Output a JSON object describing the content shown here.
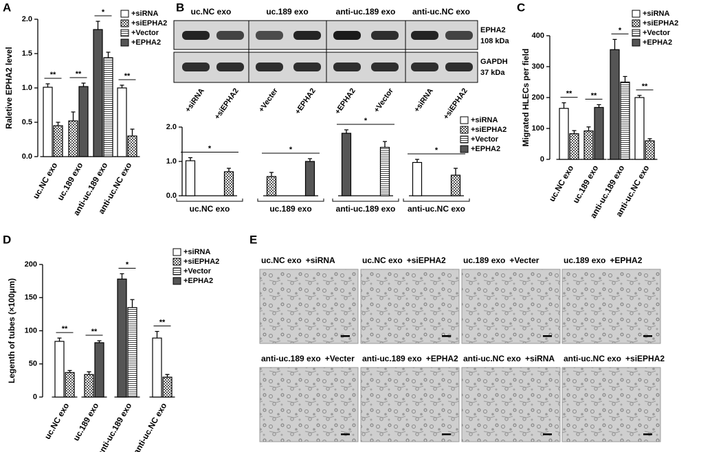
{
  "chart_data": [
    {
      "type": "bar",
      "panel": "A",
      "ylabel": "Raletive EPHA2  level",
      "categories": [
        "uc.NC exo",
        "uc.189 exo",
        "anti-uc.189 exo",
        "anti-uc.NC exo"
      ],
      "series": [
        {
          "name": "+siRNA",
          "color": "#ffffff",
          "pattern": "none",
          "values": [
            1.01,
            null,
            null,
            1.0
          ],
          "errors": [
            0.05,
            null,
            null,
            0.04
          ]
        },
        {
          "name": "+siEPHA2",
          "color": "#ffffff",
          "pattern": "checker",
          "values": [
            0.45,
            0.52,
            null,
            0.3
          ],
          "errors": [
            0.05,
            0.13,
            null,
            0.1
          ]
        },
        {
          "name": "+Vector",
          "color": "#ffffff",
          "pattern": "hstripe",
          "values": [
            null,
            null,
            1.44,
            null
          ],
          "errors": [
            null,
            null,
            0.08,
            null
          ]
        },
        {
          "name": "+EPHA2",
          "color": "#555555",
          "pattern": "none",
          "values": [
            null,
            1.02,
            1.85,
            null
          ],
          "errors": [
            null,
            0.05,
            0.12,
            null
          ]
        }
      ],
      "significance": [
        "**",
        "**",
        "*",
        "**"
      ],
      "ylim": [
        0,
        2.0
      ],
      "yticks": [
        {
          "value": 0,
          "label": "0.0"
        },
        0.5,
        {
          "value": 1,
          "label": "1.0"
        },
        1.5,
        {
          "value": 2,
          "label": "2.0"
        }
      ]
    },
    {
      "type": "bar",
      "panel": "B",
      "categories": [
        "uc.NC exo",
        "uc.189 exo",
        "anti-uc.189 exo",
        "anti-uc.NC exo"
      ],
      "series": [
        {
          "name": "+siRNA",
          "color": "#ffffff",
          "pattern": "none",
          "values": [
            1.02,
            null,
            null,
            0.97
          ],
          "errors": [
            0.09,
            null,
            null,
            0.09
          ]
        },
        {
          "name": "+siEPHA2",
          "color": "#ffffff",
          "pattern": "checker",
          "values": [
            0.7,
            0.56,
            null,
            0.6
          ],
          "errors": [
            0.1,
            0.12,
            null,
            0.2
          ]
        },
        {
          "name": "+Vector",
          "color": "#ffffff",
          "pattern": "hstripe",
          "values": [
            null,
            null,
            1.41,
            null
          ],
          "errors": [
            null,
            null,
            0.17,
            null
          ]
        },
        {
          "name": "+EPHA2",
          "color": "#555555",
          "pattern": "none",
          "values": [
            null,
            1.0,
            1.82,
            null
          ],
          "errors": [
            null,
            0.08,
            0.1,
            null
          ]
        }
      ],
      "significance": [
        "*",
        "*",
        "*",
        "*"
      ],
      "ylim": [
        0,
        2.0
      ],
      "yticks": [
        {
          "value": 0,
          "label": "0.0"
        },
        {
          "value": 1,
          "label": "1.0"
        },
        {
          "value": 2,
          "label": "2.0"
        }
      ]
    },
    {
      "type": "bar",
      "panel": "C",
      "ylabel": "Migrated HLECs per field",
      "categories": [
        "uc.NC exo",
        "uc.189 exo",
        "anti-uc.189 exo",
        "anti-uc.NC exo"
      ],
      "series": [
        {
          "name": "+siRNA",
          "color": "#ffffff",
          "pattern": "none",
          "values": [
            165,
            null,
            null,
            200
          ],
          "errors": [
            18,
            null,
            null,
            7
          ]
        },
        {
          "name": "+siEPHA2",
          "color": "#ffffff",
          "pattern": "checker",
          "values": [
            83,
            92,
            null,
            60
          ],
          "errors": [
            10,
            13,
            null,
            7
          ]
        },
        {
          "name": "+Vector",
          "color": "#ffffff",
          "pattern": "hstripe",
          "values": [
            null,
            null,
            250,
            null
          ],
          "errors": [
            null,
            null,
            18,
            null
          ]
        },
        {
          "name": "+EPHA2",
          "color": "#555555",
          "pattern": "none",
          "values": [
            null,
            168,
            355,
            null
          ],
          "errors": [
            null,
            9,
            33,
            null
          ]
        }
      ],
      "significance": [
        "**",
        "**",
        "*",
        "**"
      ],
      "ylim": [
        0,
        400
      ],
      "yticks": [
        0,
        100,
        200,
        300,
        400
      ]
    },
    {
      "type": "bar",
      "panel": "D",
      "ylabel": "Legenth of tubes (×100μm)",
      "categories": [
        "uc.NC exo",
        "uc.189 exo",
        "anti-uc.189 exo",
        "anti-uc.NC exo"
      ],
      "series": [
        {
          "name": "+siRNA",
          "color": "#ffffff",
          "pattern": "none",
          "values": [
            84,
            null,
            null,
            89
          ],
          "errors": [
            5,
            null,
            null,
            10
          ]
        },
        {
          "name": "+siEPHA2",
          "color": "#ffffff",
          "pattern": "checker",
          "values": [
            37,
            34,
            null,
            30
          ],
          "errors": [
            3,
            4,
            null,
            4
          ]
        },
        {
          "name": "+Vector",
          "color": "#ffffff",
          "pattern": "hstripe",
          "values": [
            null,
            null,
            135,
            null
          ],
          "errors": [
            null,
            null,
            12,
            null
          ]
        },
        {
          "name": "+EPHA2",
          "color": "#555555",
          "pattern": "none",
          "values": [
            null,
            82,
            178,
            null
          ],
          "errors": [
            null,
            3,
            8,
            null
          ]
        }
      ],
      "significance": [
        "**",
        "**",
        "*",
        "**"
      ],
      "ylim": [
        0,
        200
      ],
      "yticks": [
        0,
        50,
        100,
        150,
        200
      ]
    }
  ],
  "blot": {
    "groups": [
      "uc.NC exo",
      "uc.189 exo",
      "anti-uc.189 exo",
      "anti-uc.NC exo"
    ],
    "bands": [
      {
        "name": "EPHA2",
        "size": "108 kDa"
      },
      {
        "name": "GAPDH",
        "size": "37 kDa"
      }
    ],
    "lanes": [
      "+siRNA",
      "+siEPHA2",
      "+Vecter",
      "+EPHA2",
      "+EPHA2",
      "+Vector",
      "+siRNA",
      "+siEPHA2"
    ]
  },
  "micrographs": {
    "panel": "E",
    "items": [
      {
        "group": "uc.NC exo",
        "treatment": "+siRNA"
      },
      {
        "group": "uc.NC exo",
        "treatment": "+siEPHA2"
      },
      {
        "group": "uc.189 exo",
        "treatment": "+Vecter"
      },
      {
        "group": "uc.189 exo",
        "treatment": "+EPHA2"
      },
      {
        "group": "anti-uc.189 exo",
        "treatment": "+Vecter"
      },
      {
        "group": "anti-uc.189 exo",
        "treatment": "+EPHA2"
      },
      {
        "group": "anti-uc.NC exo",
        "treatment": "+siRNA"
      },
      {
        "group": "anti-uc.NC exo",
        "treatment": "+siEPHA2"
      }
    ]
  }
}
